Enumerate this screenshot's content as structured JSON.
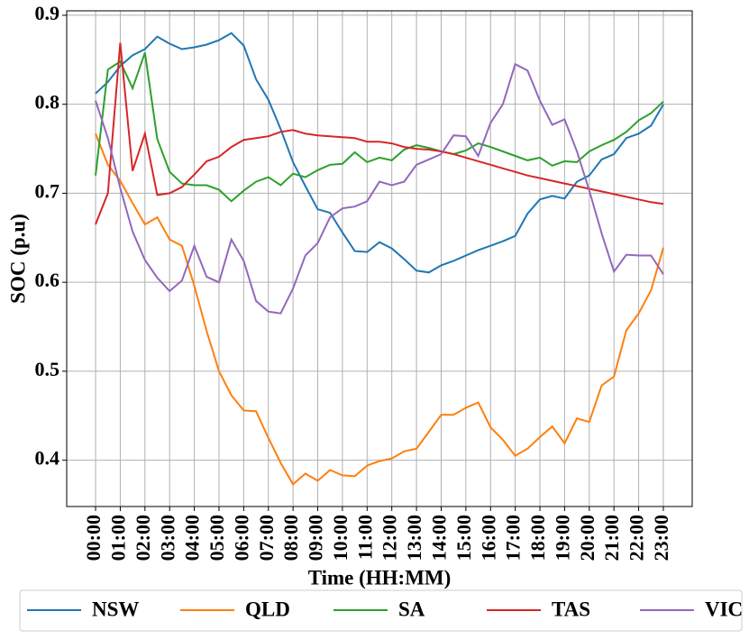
{
  "chart_data": {
    "type": "line",
    "xlabel": "Time (HH:MM)",
    "ylabel": "SOC (p.u)",
    "categories": [
      "00:00",
      null,
      "01:00",
      null,
      "02:00",
      null,
      "03:00",
      null,
      "04:00",
      null,
      "05:00",
      null,
      "06:00",
      null,
      "07:00",
      null,
      "08:00",
      null,
      "09:00",
      null,
      "10:00",
      null,
      "11:00",
      null,
      "12:00",
      null,
      "13:00",
      null,
      "14:00",
      null,
      "15:00",
      null,
      "16:00",
      null,
      "17:00",
      null,
      "18:00",
      null,
      "19:00",
      null,
      "20:00",
      null,
      "21:00",
      null,
      "22:00",
      null,
      "23:00"
    ],
    "ylim": [
      0.348,
      0.905
    ],
    "yticks": [
      0.4,
      0.5,
      0.6,
      0.7,
      0.8,
      0.9
    ],
    "grid": true,
    "legend": "below",
    "series": [
      {
        "name": "NSW",
        "color": "#1f77b4",
        "values": [
          0.812,
          0.825,
          0.843,
          0.855,
          0.862,
          0.876,
          0.868,
          0.862,
          0.864,
          0.867,
          0.872,
          0.88,
          0.866,
          0.828,
          0.805,
          0.772,
          0.735,
          0.708,
          0.682,
          0.678,
          0.656,
          0.635,
          0.634,
          0.645,
          0.638,
          0.626,
          0.613,
          0.611,
          0.619,
          0.624,
          0.63,
          0.636,
          0.641,
          0.646,
          0.652,
          0.677,
          0.693,
          0.697,
          0.694,
          0.713,
          0.72,
          0.738,
          0.744,
          0.762,
          0.767,
          0.776,
          0.8
        ]
      },
      {
        "name": "QLD",
        "color": "#ff7f0e",
        "values": [
          0.767,
          0.732,
          0.714,
          0.689,
          0.665,
          0.673,
          0.648,
          0.641,
          0.596,
          0.545,
          0.5,
          0.473,
          0.456,
          0.455,
          0.425,
          0.397,
          0.373,
          0.385,
          0.377,
          0.389,
          0.383,
          0.382,
          0.394,
          0.399,
          0.402,
          0.41,
          0.413,
          0.432,
          0.451,
          0.451,
          0.459,
          0.465,
          0.437,
          0.423,
          0.405,
          0.413,
          0.426,
          0.438,
          0.419,
          0.447,
          0.443,
          0.484,
          0.494,
          0.546,
          0.565,
          0.591,
          0.639
        ]
      },
      {
        "name": "SA",
        "color": "#2ca02c",
        "values": [
          0.72,
          0.839,
          0.848,
          0.818,
          0.858,
          0.761,
          0.724,
          0.711,
          0.709,
          0.709,
          0.704,
          0.691,
          0.703,
          0.713,
          0.718,
          0.709,
          0.722,
          0.718,
          0.726,
          0.732,
          0.733,
          0.746,
          0.735,
          0.74,
          0.737,
          0.749,
          0.754,
          0.751,
          0.747,
          0.744,
          0.748,
          0.756,
          0.752,
          0.747,
          0.742,
          0.737,
          0.74,
          0.731,
          0.736,
          0.735,
          0.747,
          0.754,
          0.76,
          0.769,
          0.782,
          0.79,
          0.803
        ]
      },
      {
        "name": "TAS",
        "color": "#d62728",
        "values": [
          0.665,
          0.7,
          0.869,
          0.725,
          0.767,
          0.698,
          0.7,
          0.707,
          0.721,
          0.736,
          0.741,
          0.752,
          0.76,
          0.762,
          0.764,
          0.769,
          0.771,
          0.767,
          0.765,
          0.764,
          0.763,
          0.762,
          0.758,
          0.758,
          0.756,
          0.752,
          0.75,
          0.749,
          0.747,
          0.744,
          0.74,
          0.736,
          0.732,
          0.728,
          0.724,
          0.72,
          0.717,
          0.714,
          0.711,
          0.708,
          0.705,
          0.702,
          0.699,
          0.696,
          0.693,
          0.69,
          0.688
        ]
      },
      {
        "name": "VIC",
        "color": "#9467bd",
        "values": [
          0.804,
          0.762,
          0.706,
          0.657,
          0.625,
          0.605,
          0.59,
          0.602,
          0.641,
          0.606,
          0.6,
          0.648,
          0.624,
          0.579,
          0.567,
          0.565,
          0.593,
          0.63,
          0.644,
          0.673,
          0.683,
          0.685,
          0.691,
          0.713,
          0.709,
          0.713,
          0.732,
          0.738,
          0.744,
          0.765,
          0.764,
          0.742,
          0.779,
          0.8,
          0.845,
          0.838,
          0.804,
          0.777,
          0.783,
          0.747,
          0.703,
          0.655,
          0.612,
          0.631,
          0.63,
          0.63,
          0.609
        ]
      }
    ]
  }
}
